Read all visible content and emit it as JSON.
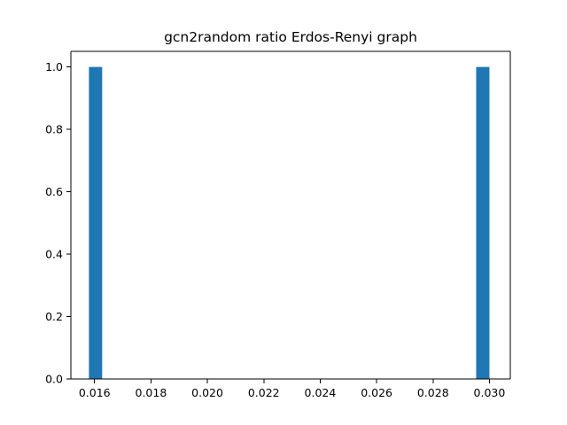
{
  "chart_data": {
    "type": "bar",
    "title": "gcn2random ratio Erdos-Renyi graph",
    "xlabel": "",
    "ylabel": "",
    "x_range": [
      0.01516,
      0.03074
    ],
    "ylim": [
      0,
      1.05
    ],
    "x_ticks": [
      "0.016",
      "0.018",
      "0.020",
      "0.022",
      "0.024",
      "0.026",
      "0.028",
      "0.030"
    ],
    "y_ticks": [
      "0.0",
      "0.2",
      "0.4",
      "0.6",
      "0.8",
      "1.0"
    ],
    "bins": [
      {
        "x_start": 0.0158,
        "x_end": 0.01627,
        "value": 1
      },
      {
        "x_start": 0.02953,
        "x_end": 0.03,
        "value": 1
      }
    ],
    "grid": false,
    "legend": "none",
    "bar_color": "#1f77b4"
  }
}
